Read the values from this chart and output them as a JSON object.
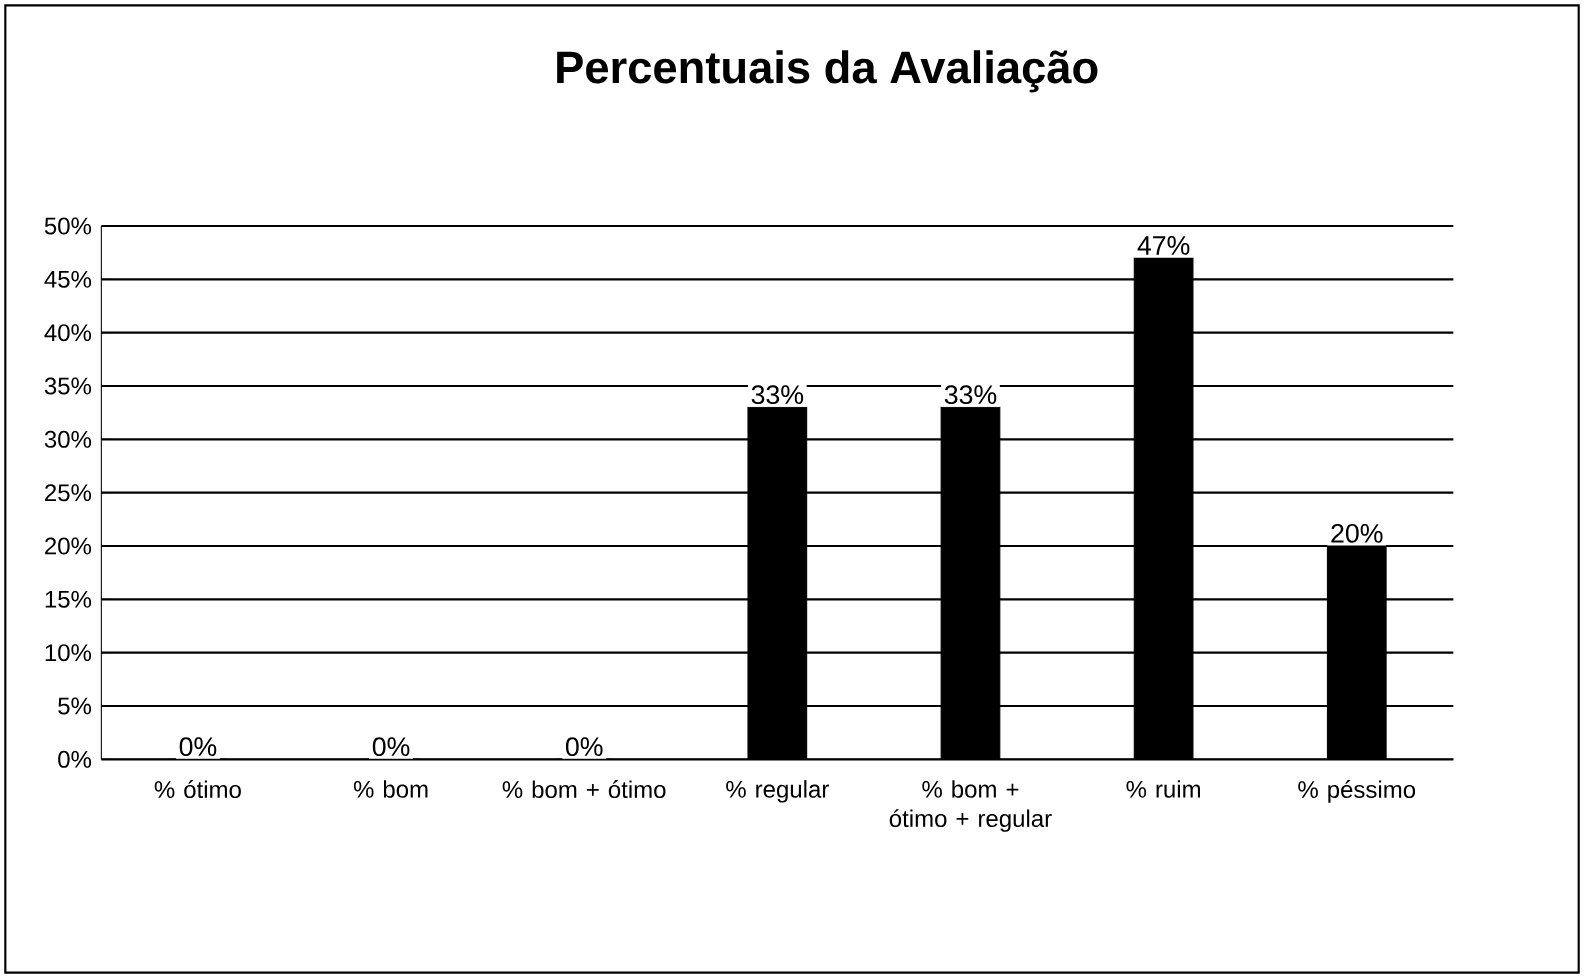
{
  "chart_data": {
    "type": "bar",
    "title": "Percentuais da Avaliação",
    "categories": [
      "% ótimo",
      "% bom",
      "% bom + ótimo",
      "% regular",
      "% bom + ótimo + regular",
      "% ruim",
      "% péssimo"
    ],
    "values": [
      0,
      0,
      0,
      33,
      33,
      47,
      20
    ],
    "value_labels": [
      "0%",
      "0%",
      "0%",
      "33%",
      "33%",
      "47%",
      "20%"
    ],
    "color": "#000000",
    "ylim": [
      0,
      50
    ],
    "yticks": [
      {
        "value": 0,
        "label": "0%"
      },
      {
        "value": 5,
        "label": "5%"
      },
      {
        "value": 10,
        "label": "10%"
      },
      {
        "value": 15,
        "label": "15%"
      },
      {
        "value": 20,
        "label": "20%"
      },
      {
        "value": 25,
        "label": "25%"
      },
      {
        "value": 30,
        "label": "30%"
      },
      {
        "value": 35,
        "label": "35%"
      },
      {
        "value": 40,
        "label": "40%"
      },
      {
        "value": 45,
        "label": "45%"
      },
      {
        "value": 50,
        "label": "50%"
      }
    ],
    "grid": "y"
  }
}
